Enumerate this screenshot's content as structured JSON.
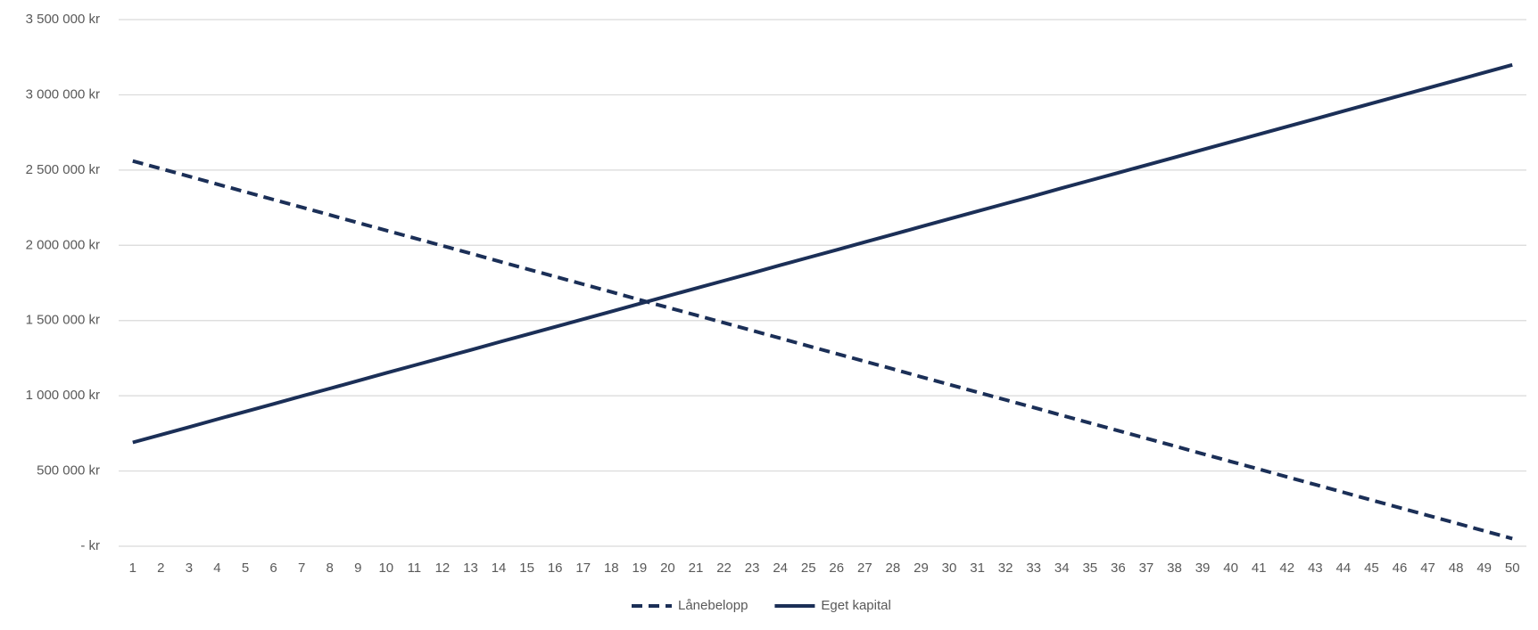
{
  "chart_data": {
    "type": "line",
    "categories": [
      1,
      2,
      3,
      4,
      5,
      6,
      7,
      8,
      9,
      10,
      11,
      12,
      13,
      14,
      15,
      16,
      17,
      18,
      19,
      20,
      21,
      22,
      23,
      24,
      25,
      26,
      27,
      28,
      29,
      30,
      31,
      32,
      33,
      34,
      35,
      36,
      37,
      38,
      39,
      40,
      41,
      42,
      43,
      44,
      45,
      46,
      47,
      48,
      49,
      50
    ],
    "series": [
      {
        "name": "Lånebelopp",
        "color": "#1b2f57",
        "dashed": true,
        "values": [
          2560000,
          2509000,
          2458000,
          2406000,
          2355000,
          2304000,
          2253000,
          2202000,
          2150000,
          2099000,
          2048000,
          1997000,
          1946000,
          1894000,
          1843000,
          1792000,
          1741000,
          1690000,
          1638000,
          1587000,
          1536000,
          1485000,
          1434000,
          1382000,
          1331000,
          1280000,
          1229000,
          1178000,
          1126000,
          1075000,
          1024000,
          973000,
          922000,
          870000,
          819000,
          768000,
          717000,
          666000,
          614000,
          563000,
          512000,
          461000,
          410000,
          358000,
          307000,
          256000,
          205000,
          154000,
          102000,
          51000
        ]
      },
      {
        "name": "Eget kapital",
        "color": "#1b2f57",
        "dashed": false,
        "values": [
          690000,
          741000,
          792000,
          844000,
          895000,
          946000,
          997000,
          1048000,
          1100000,
          1151000,
          1202000,
          1253000,
          1304000,
          1356000,
          1407000,
          1458000,
          1509000,
          1560000,
          1612000,
          1663000,
          1714000,
          1765000,
          1816000,
          1868000,
          1919000,
          1970000,
          2021000,
          2072000,
          2124000,
          2175000,
          2226000,
          2277000,
          2328000,
          2380000,
          2431000,
          2482000,
          2533000,
          2584000,
          2636000,
          2687000,
          2738000,
          2789000,
          2840000,
          2892000,
          2943000,
          2994000,
          3045000,
          3096000,
          3148000,
          3199000
        ]
      }
    ],
    "ylim": [
      0,
      3500000
    ],
    "yticks": [
      {
        "value": 0,
        "label": "- kr"
      },
      {
        "value": 500000,
        "label": "500 000 kr"
      },
      {
        "value": 1000000,
        "label": "1 000 000 kr"
      },
      {
        "value": 1500000,
        "label": "1 500 000 kr"
      },
      {
        "value": 2000000,
        "label": "2 000 000 kr"
      },
      {
        "value": 2500000,
        "label": "2 500 000 kr"
      },
      {
        "value": 3000000,
        "label": "3 000 000 kr"
      },
      {
        "value": 3500000,
        "label": "3 500 000 kr"
      }
    ],
    "grid": true,
    "legend": "bottom"
  }
}
